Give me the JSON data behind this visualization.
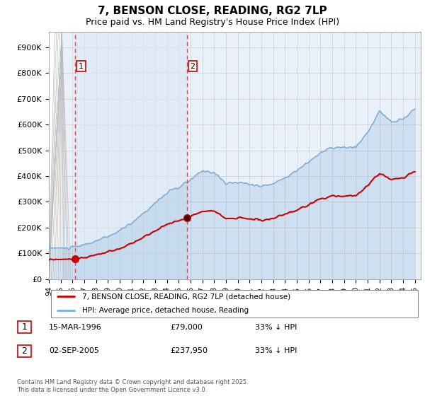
{
  "title": "7, BENSON CLOSE, READING, RG2 7LP",
  "subtitle": "Price paid vs. HM Land Registry's House Price Index (HPI)",
  "ylabel_ticks": [
    "£0",
    "£100K",
    "£200K",
    "£300K",
    "£400K",
    "£500K",
    "£600K",
    "£700K",
    "£800K",
    "£900K"
  ],
  "ytick_vals": [
    0,
    100000,
    200000,
    300000,
    400000,
    500000,
    600000,
    700000,
    800000,
    900000
  ],
  "ylim": [
    0,
    960000
  ],
  "xlim_start": 1994.0,
  "xlim_end": 2025.5,
  "purchase1_year": 1996.21,
  "purchase1_price": 79000,
  "purchase2_year": 2005.67,
  "purchase2_price": 237950,
  "legend_line1": "7, BENSON CLOSE, READING, RG2 7LP (detached house)",
  "legend_line2": "HPI: Average price, detached house, Reading",
  "footer": "Contains HM Land Registry data © Crown copyright and database right 2025.\nThis data is licensed under the Open Government Licence v3.0.",
  "property_color": "#cc0000",
  "hpi_color": "#7dadd4",
  "hpi_fill_color": "#dbe8f5",
  "vline_color": "#cc3333",
  "grid_color": "#cccccc",
  "plot_bg_color": "#e8f0fa",
  "hatch_color": "#c8c8c8"
}
